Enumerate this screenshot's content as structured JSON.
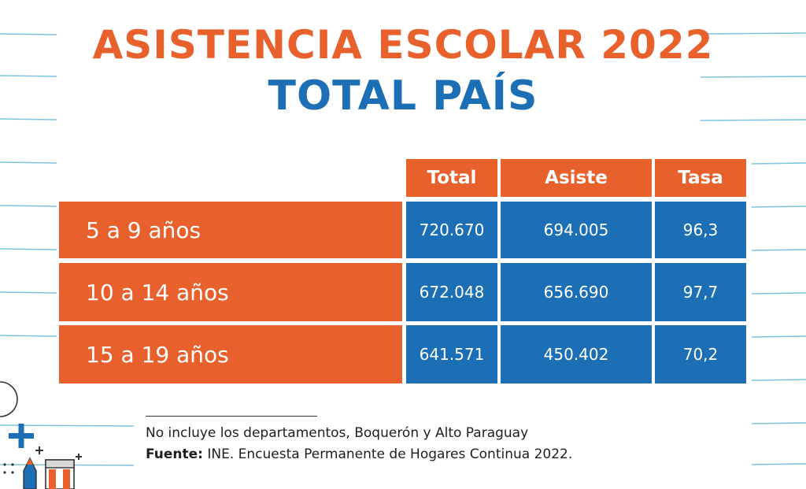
{
  "colors": {
    "orange": "#e8602c",
    "blue": "#1c6fb4",
    "line": "#7fc3df"
  },
  "title": "ASISTENCIA ESCOLAR 2022",
  "subtitle": "TOTAL PAÍS",
  "chart_data": {
    "type": "table",
    "title": "ASISTENCIA ESCOLAR 2022",
    "subtitle": "TOTAL PAÍS",
    "columns": [
      "Total",
      "Asiste",
      "Tasa"
    ],
    "rows": [
      {
        "label": "5 a 9 años",
        "values": [
          "720.670",
          "694.005",
          "96,3"
        ]
      },
      {
        "label": "10 a 14 años",
        "values": [
          "672.048",
          "656.690",
          "97,7"
        ]
      },
      {
        "label": "15 a 19 años",
        "values": [
          "641.571",
          "450.402",
          "70,2"
        ]
      }
    ]
  },
  "notes": {
    "exclusion": "No incluye los departamentos, Boquerón y Alto Paraguay",
    "source_label": "Fuente:",
    "source_text": " INE.  Encuesta Permanente de Hogares Continua 2022."
  }
}
